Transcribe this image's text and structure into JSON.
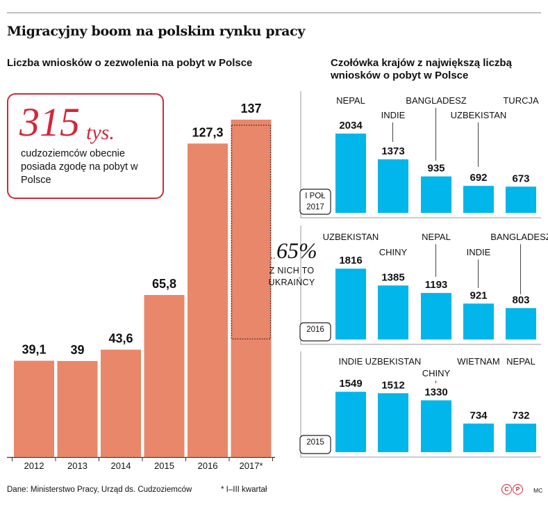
{
  "title": "Migracyjny boom na polskim rynku pracy",
  "left_subtitle": "Liczba wniosków o zezwolenia na pobyt w Polsce",
  "right_subtitle": "Czołówka krajów z największą liczbą wniosków o pobyt w Polsce",
  "callout": {
    "number": "315",
    "unit": "tys.",
    "text": "cudzoziemców obecnie posiada zgodę na pobyt w Polsce"
  },
  "annotation": {
    "percent": "65%",
    "text": "Z NICH TO UKRAIŃCY"
  },
  "footer": {
    "source": "Dane: Ministerstwo Pracy, Urząd ds. Cudzoziemców",
    "note": "* I–III kwartał",
    "author": "MC"
  },
  "colors": {
    "bar_left": "#e8876a",
    "bar_right": "#00b6ea",
    "accent": "#d2283a",
    "axis": "#333333"
  },
  "chart_data": [
    {
      "type": "bar",
      "title": "Liczba wniosków o zezwolenia na pobyt w Polsce",
      "categories": [
        "2012",
        "2013",
        "2014",
        "2015",
        "2016",
        "2017*"
      ],
      "values": [
        39.1,
        39,
        43.6,
        65.8,
        127.3,
        137
      ],
      "labels": [
        "39,1",
        "39",
        "43,6",
        "65,8",
        "127,3",
        "137"
      ],
      "ylim": [
        0,
        150
      ],
      "highlight": {
        "category": "2017*",
        "share": 0.65,
        "label": "65% Z NICH TO UKRAIŃCY"
      },
      "grid": false
    },
    {
      "type": "bar",
      "title": "Czołówka krajów z największą liczbą wniosków o pobyt w Polsce",
      "period": "I POŁ 2017",
      "categories": [
        "NEPAL",
        "INDIE",
        "BANGLADESZ",
        "UZBEKISTAN",
        "TURCJA"
      ],
      "values": [
        2034,
        1373,
        935,
        692,
        673
      ]
    },
    {
      "type": "bar",
      "period": "2016",
      "categories": [
        "UZBEKISTAN",
        "CHINY",
        "NEPAL",
        "INDIE",
        "BANGLADESZ"
      ],
      "values": [
        1816,
        1385,
        1193,
        921,
        803
      ]
    },
    {
      "type": "bar",
      "period": "2015",
      "categories": [
        "INDIE",
        "UZBEKISTAN",
        "CHINY",
        "WIETNAM",
        "NEPAL"
      ],
      "values": [
        1549,
        1512,
        1330,
        734,
        732
      ]
    }
  ]
}
